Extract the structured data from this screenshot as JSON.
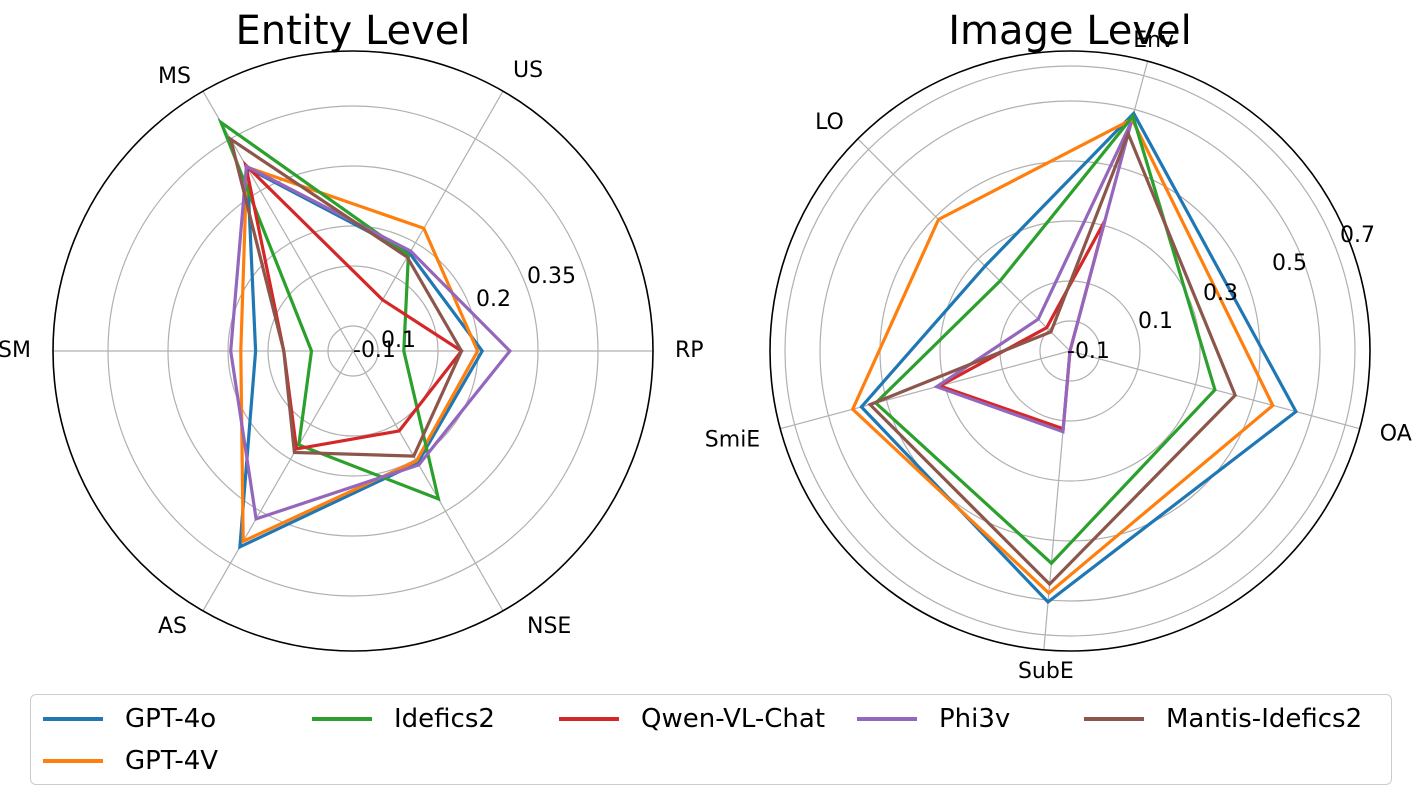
{
  "chart_data": [
    {
      "type": "radar",
      "title": "Entity Level",
      "axes": [
        "RP",
        "US",
        "MS",
        "SM",
        "AS",
        "NSE"
      ],
      "rlim": [
        -0.2,
        0.45
      ],
      "rticks": [
        "-0.1",
        "0.1",
        "0.2",
        "0.35"
      ],
      "grid": true,
      "series": [
        {
          "name": "GPT-4o",
          "values": [
            0.08,
            0.045,
            0.258,
            0.011,
            0.29,
            0.08
          ]
        },
        {
          "name": "GPT-4V",
          "values": [
            0.07,
            0.107,
            0.26,
            0.043,
            0.276,
            0.075
          ]
        },
        {
          "name": "Idefics2",
          "values": [
            -0.09,
            0.04,
            0.372,
            -0.11,
            0.035,
            0.17
          ]
        },
        {
          "name": "Qwen-VL-Chat",
          "values": [
            0.035,
            -0.072,
            0.265,
            -0.05,
            0.045,
            0.0
          ]
        },
        {
          "name": "Phi3v",
          "values": [
            0.14,
            0.05,
            0.262,
            0.065,
            0.22,
            0.085
          ]
        },
        {
          "name": "Mantis-Idefics2",
          "values": [
            0.035,
            0.035,
            0.33,
            -0.05,
            0.054,
            0.063
          ]
        }
      ]
    },
    {
      "type": "radar",
      "title": "Image Level",
      "axes": [
        "OA",
        "Env",
        "LO",
        "SmiE",
        "SubE"
      ],
      "rlim": [
        -0.2,
        0.8
      ],
      "rticks": [
        "-0.1",
        "0.1",
        "0.3",
        "0.5",
        "0.7"
      ],
      "grid": true,
      "series": [
        {
          "name": "GPT-4o",
          "values": [
            0.58,
            0.62,
            0.2,
            0.52,
            0.64
          ]
        },
        {
          "name": "GPT-4V",
          "values": [
            0.5,
            0.6,
            0.42,
            0.55,
            0.61
          ]
        },
        {
          "name": "Idefics2",
          "values": [
            0.3,
            0.61,
            0.13,
            0.47,
            0.51
          ]
        },
        {
          "name": "Qwen-VL-Chat",
          "values": [
            -0.23,
            0.25,
            -0.09,
            0.25,
            0.06
          ]
        },
        {
          "name": "Phi3v",
          "values": [
            -0.23,
            0.59,
            -0.05,
            0.26,
            0.07
          ]
        },
        {
          "name": "Mantis-Idefics2",
          "values": [
            0.37,
            0.55,
            -0.11,
            0.49,
            0.58
          ]
        }
      ]
    }
  ],
  "colors": {
    "GPT-4o": "#1f77b4",
    "GPT-4V": "#ff7f0e",
    "Idefics2": "#2ca02c",
    "Qwen-VL-Chat": "#d62728",
    "Phi3v": "#9467bd",
    "Mantis-Idefics2": "#8c564b"
  },
  "legend": {
    "placement": "bottom",
    "items": [
      "GPT-4o",
      "Idefics2",
      "Qwen-VL-Chat",
      "Phi3v",
      "Mantis-Idefics2",
      "GPT-4V"
    ]
  }
}
